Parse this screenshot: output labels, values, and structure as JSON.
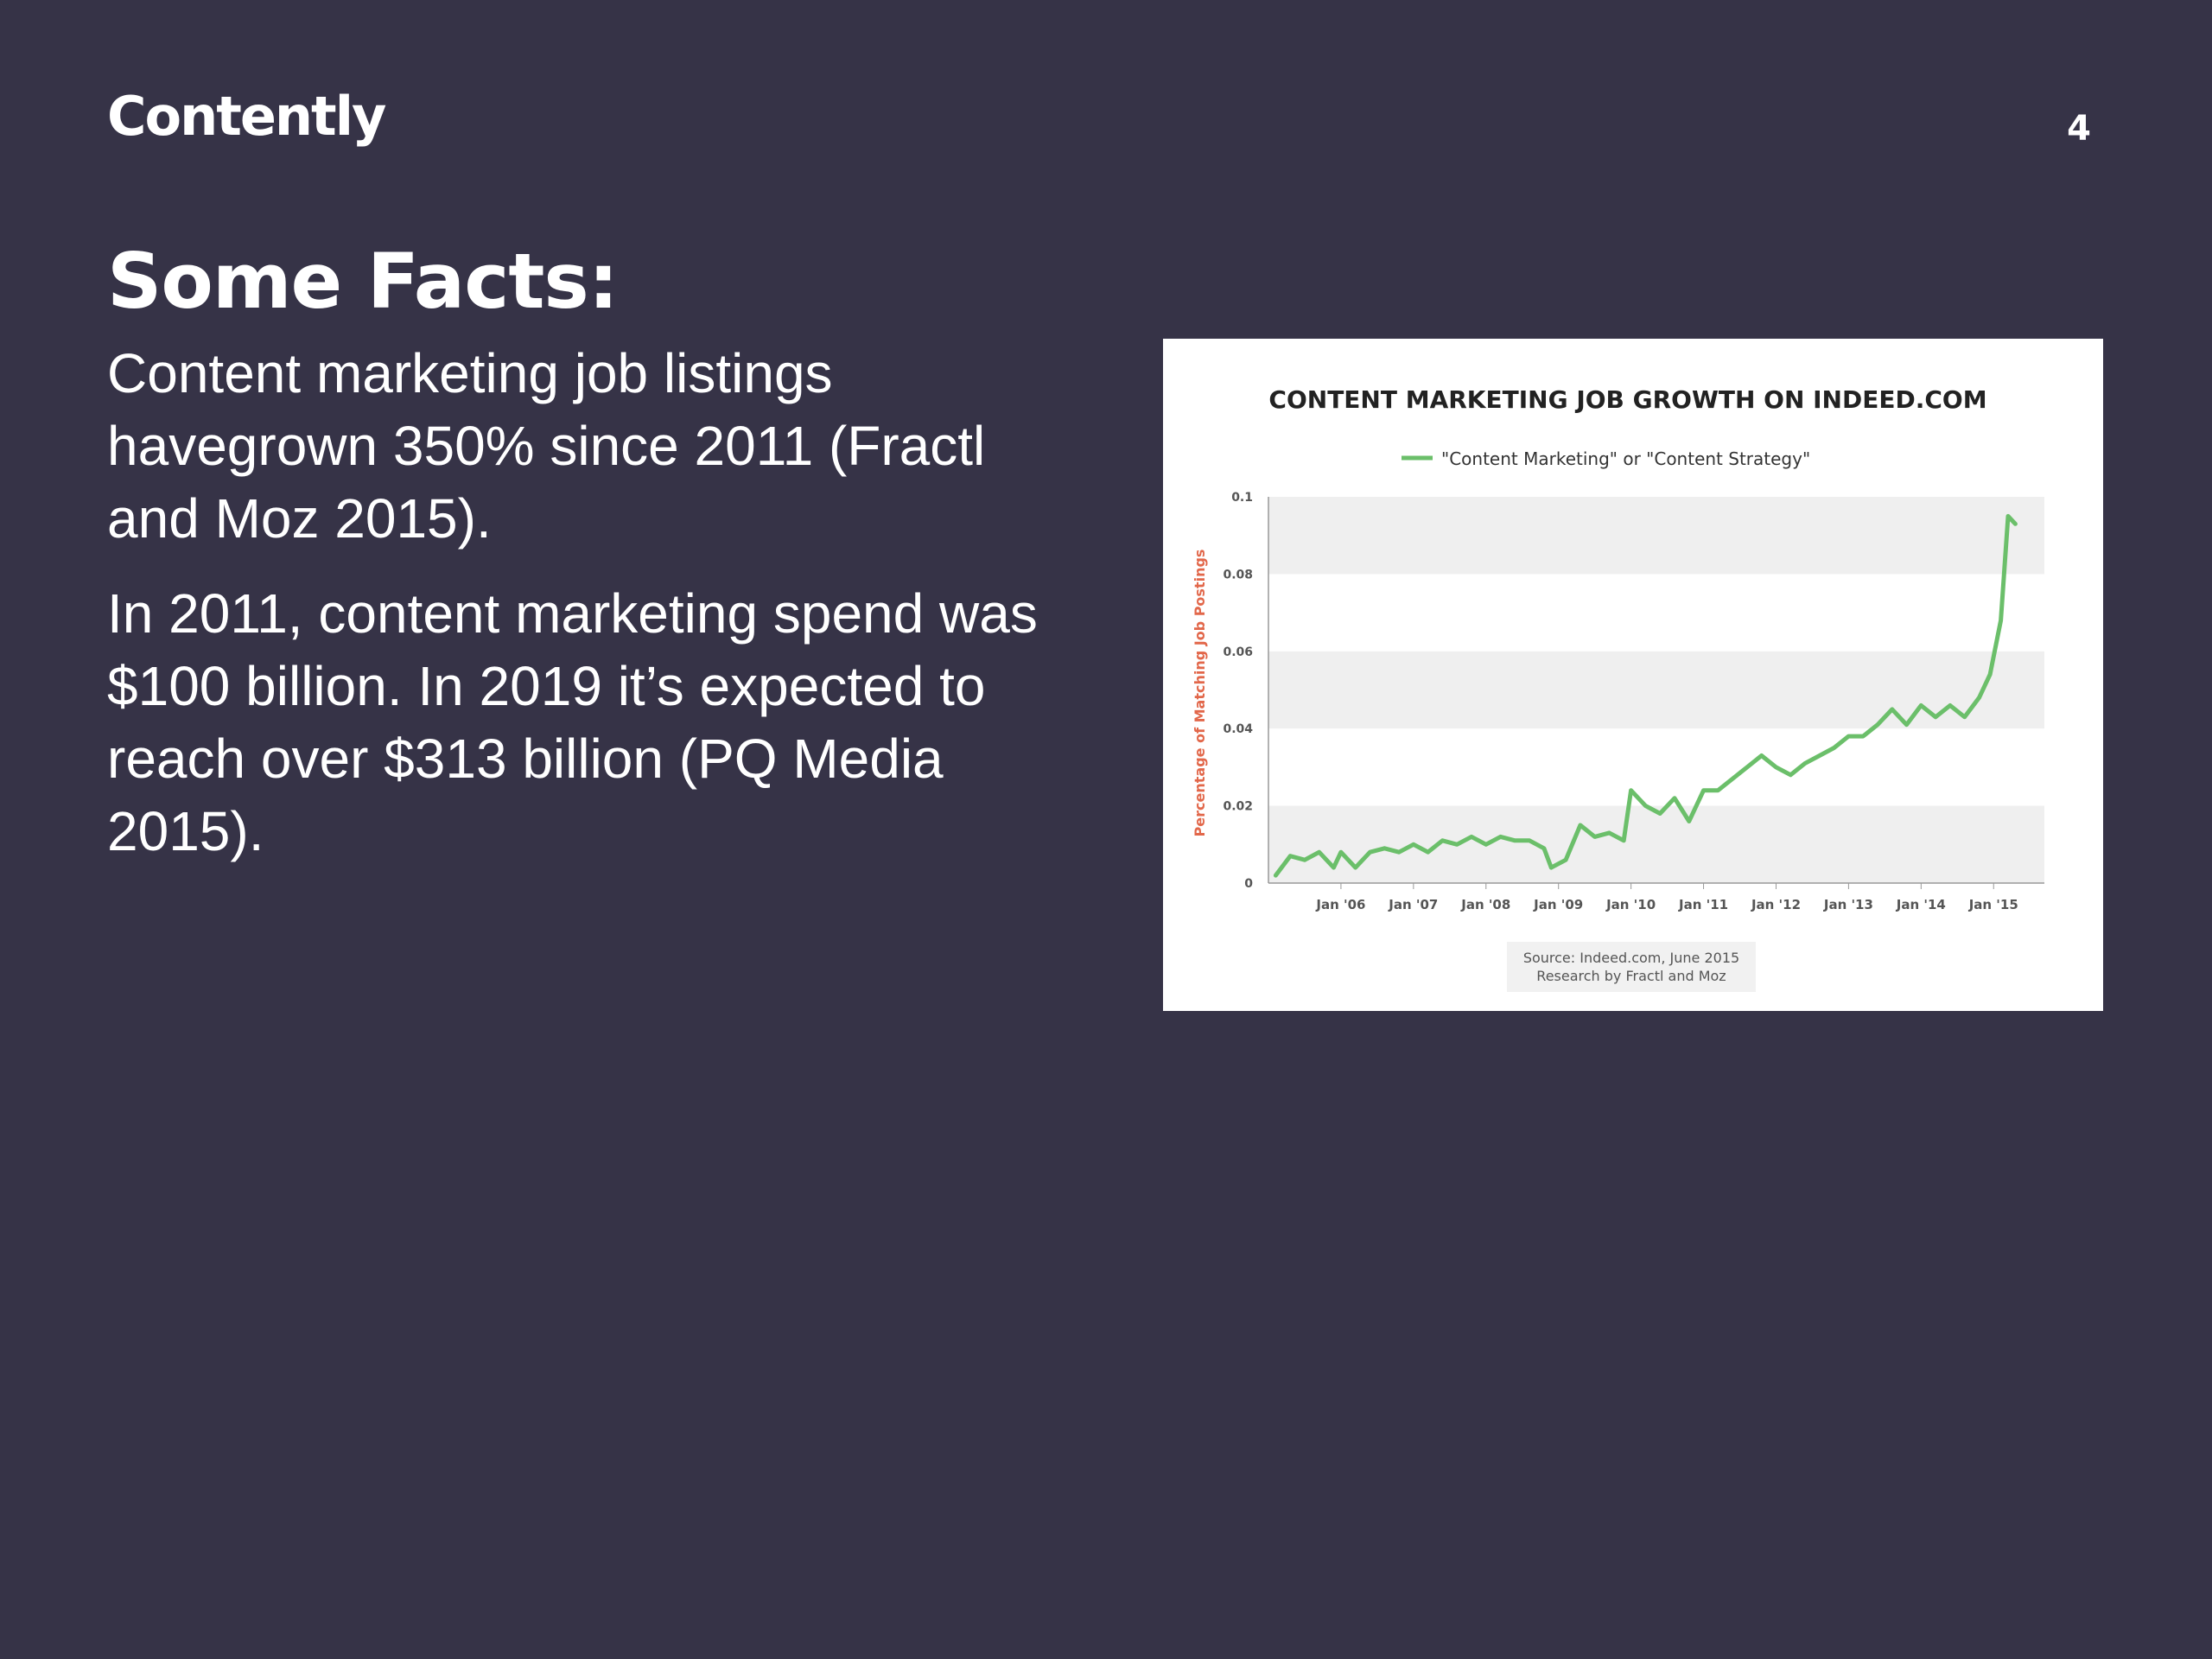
{
  "header": {
    "logo_text": "Contently",
    "page_number": "4"
  },
  "slide": {
    "heading": "Some Facts:",
    "facts": [
      "Content marketing job listings havegrown 350% since 2011 (Fractl and Moz 2015).",
      "In 2011, content marketing spend was $100 billion. In 2019 it’s expected to reach over $313 billion (PQ Media 2015)."
    ]
  },
  "chart_data": {
    "type": "line",
    "title": "CONTENT MARKETING JOB GROWTH ON INDEED.COM",
    "ylabel": "Percentage of Matching Job Postings",
    "xlabel": "",
    "ylim": [
      0,
      0.1
    ],
    "y_ticks": [
      "0",
      "0.02",
      "0.04",
      "0.06",
      "0.08",
      "0.1"
    ],
    "x_ticks": [
      "Jan '06",
      "Jan '07",
      "Jan '08",
      "Jan '09",
      "Jan '10",
      "Jan '11",
      "Jan '12",
      "Jan '13",
      "Jan '14",
      "Jan '15"
    ],
    "legend_position": "top-center",
    "grid": "alternating horizontal bands",
    "line_color": "#6bbf6a",
    "series": [
      {
        "name": "\"Content Marketing\" or \"Content Strategy\"",
        "x": [
          2005.1,
          2005.3,
          2005.5,
          2005.7,
          2005.9,
          2006.0,
          2006.2,
          2006.4,
          2006.6,
          2006.8,
          2007.0,
          2007.2,
          2007.4,
          2007.6,
          2007.8,
          2008.0,
          2008.2,
          2008.4,
          2008.6,
          2008.8,
          2008.9,
          2009.1,
          2009.3,
          2009.5,
          2009.7,
          2009.9,
          2010.0,
          2010.2,
          2010.4,
          2010.6,
          2010.8,
          2011.0,
          2011.2,
          2011.4,
          2011.6,
          2011.8,
          2012.0,
          2012.2,
          2012.4,
          2012.6,
          2012.8,
          2013.0,
          2013.2,
          2013.4,
          2013.6,
          2013.8,
          2014.0,
          2014.2,
          2014.4,
          2014.6,
          2014.8,
          2014.95,
          2015.1,
          2015.2,
          2015.3
        ],
        "values": [
          0.002,
          0.007,
          0.006,
          0.008,
          0.004,
          0.008,
          0.004,
          0.008,
          0.009,
          0.008,
          0.01,
          0.008,
          0.011,
          0.01,
          0.012,
          0.01,
          0.012,
          0.011,
          0.011,
          0.009,
          0.004,
          0.006,
          0.015,
          0.012,
          0.013,
          0.011,
          0.024,
          0.02,
          0.018,
          0.022,
          0.016,
          0.024,
          0.024,
          0.027,
          0.03,
          0.033,
          0.03,
          0.028,
          0.031,
          0.033,
          0.035,
          0.038,
          0.038,
          0.041,
          0.045,
          0.041,
          0.046,
          0.043,
          0.046,
          0.043,
          0.048,
          0.054,
          0.068,
          0.095,
          0.093
        ]
      }
    ],
    "source_note": [
      "Source: Indeed.com, June 2015",
      "Research by Fractl and Moz"
    ]
  }
}
